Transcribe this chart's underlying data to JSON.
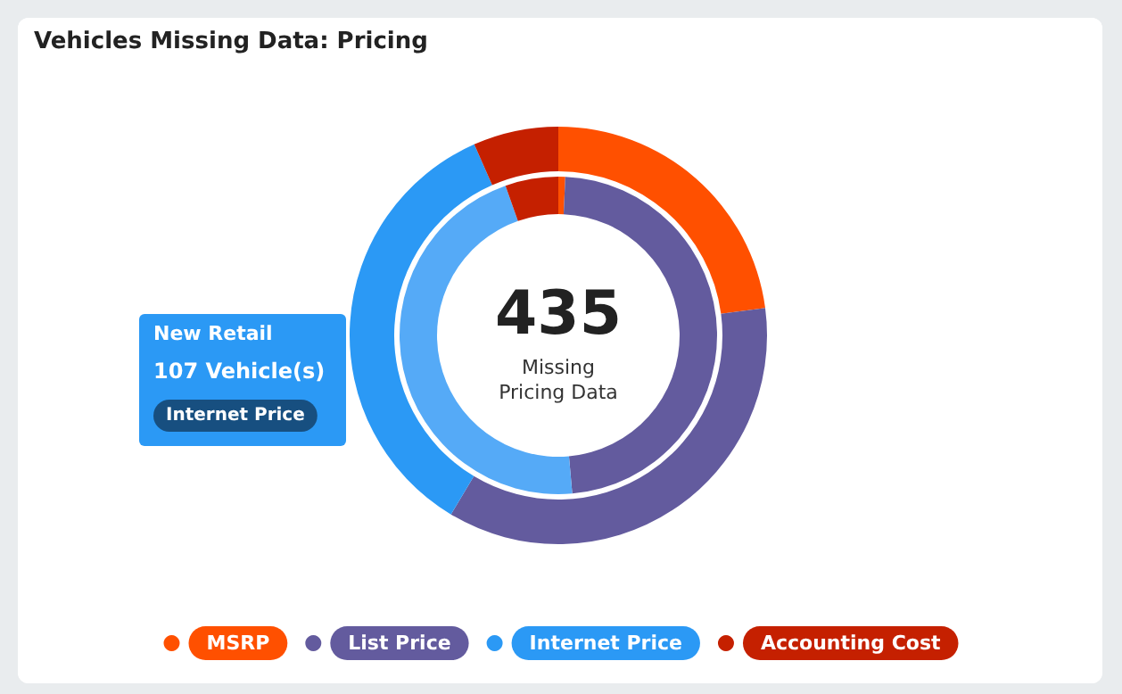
{
  "chart_data": {
    "type": "donut",
    "title": "Vehicles Missing Data: Pricing",
    "categories": [
      "MSRP",
      "List Price",
      "Internet Price",
      "Accounting Cost"
    ],
    "colors": [
      "#ff5000",
      "#635b9e",
      "#2b99f5",
      "#c52000"
    ],
    "series": [
      {
        "values": [
          0.7,
          47.9,
          46.0,
          5.4
        ],
        "colors": [
          "#ff5000",
          "#635b9e",
          "#55aaf7",
          "#c52000"
        ]
      },
      {
        "values": [
          22.9,
          35.7,
          34.8,
          6.6
        ],
        "colors": [
          "#ff5000",
          "#635b9e",
          "#2b99f5",
          "#c52000"
        ]
      }
    ],
    "annotations": [
      "435",
      "Missing\nPricing Data",
      "New Retail",
      "107 Vehicle(s)",
      "Internet Price"
    ],
    "legend": "bottom"
  }
}
